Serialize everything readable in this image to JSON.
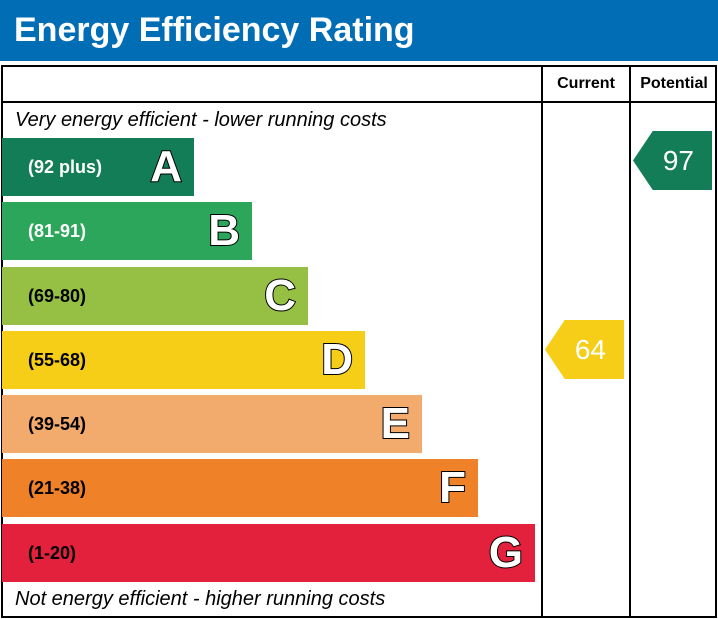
{
  "header": {
    "title": "Energy Efficiency Rating"
  },
  "columns": {
    "current": "Current",
    "potential": "Potential"
  },
  "notes": {
    "top": "Very energy efficient - lower running costs",
    "bottom": "Not energy efficient - higher running costs"
  },
  "chart_data": {
    "type": "bar",
    "title": "Energy Efficiency Rating",
    "categories": [
      "A",
      "B",
      "C",
      "D",
      "E",
      "F",
      "G"
    ],
    "bands": [
      {
        "letter": "A",
        "range": "(92 plus)",
        "color": "#127d57",
        "text_color": "#ffffff"
      },
      {
        "letter": "B",
        "range": "(81-91)",
        "color": "#2ca65a",
        "text_color": "#ffffff"
      },
      {
        "letter": "C",
        "range": "(69-80)",
        "color": "#95c043",
        "text_color": "#000000"
      },
      {
        "letter": "D",
        "range": "(55-68)",
        "color": "#f6cd17",
        "text_color": "#000000"
      },
      {
        "letter": "E",
        "range": "(39-54)",
        "color": "#f3ab6d",
        "text_color": "#000000"
      },
      {
        "letter": "F",
        "range": "(21-38)",
        "color": "#ef8229",
        "text_color": "#000000"
      },
      {
        "letter": "G",
        "range": "(1-20)",
        "color": "#e3213d",
        "text_color": "#000000"
      }
    ],
    "current": {
      "value": "64",
      "band": "D",
      "color": "#f6cd17"
    },
    "potential": {
      "value": "97",
      "band": "A",
      "color": "#127d57"
    }
  }
}
